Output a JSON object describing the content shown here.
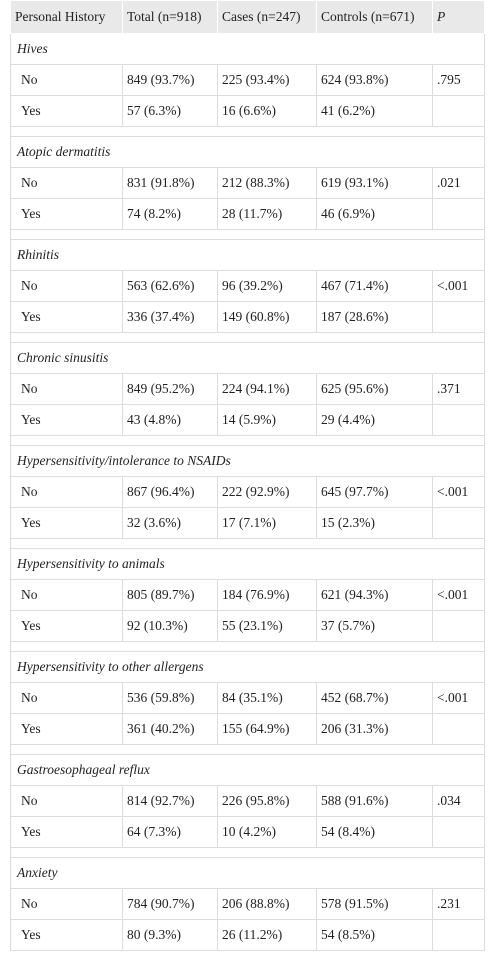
{
  "table": {
    "header": [
      "Personal History",
      "Total (n=918)",
      "Cases (n=247)",
      "Controls (n=671)",
      "P"
    ],
    "groups": [
      {
        "title": "Hives",
        "p": ".795",
        "rows": [
          [
            "No",
            "849 (93.7%)",
            "225 (93.4%)",
            "624 (93.8%)"
          ],
          [
            "Yes",
            "57 (6.3%)",
            "16 (6.6%)",
            "41 (6.2%)"
          ]
        ]
      },
      {
        "title": "Atopic dermatitis",
        "p": ".021",
        "rows": [
          [
            "No",
            "831 (91.8%)",
            "212 (88.3%)",
            "619 (93.1%)"
          ],
          [
            "Yes",
            "74 (8.2%)",
            "28 (11.7%)",
            "46 (6.9%)"
          ]
        ]
      },
      {
        "title": "Rhinitis",
        "p": "<.001",
        "rows": [
          [
            "No",
            "563 (62.6%)",
            "96 (39.2%)",
            "467 (71.4%)"
          ],
          [
            "Yes",
            "336 (37.4%)",
            "149 (60.8%)",
            "187 (28.6%)"
          ]
        ]
      },
      {
        "title": "Chronic sinusitis",
        "p": ".371",
        "rows": [
          [
            "No",
            "849 (95.2%)",
            "224 (94.1%)",
            "625 (95.6%)"
          ],
          [
            "Yes",
            "43 (4.8%)",
            "14 (5.9%)",
            "29 (4.4%)"
          ]
        ]
      },
      {
        "title": "Hypersensitivity/intolerance to NSAIDs",
        "p": "<.001",
        "rows": [
          [
            "No",
            "867 (96.4%)",
            "222 (92.9%)",
            "645 (97.7%)"
          ],
          [
            "Yes",
            "32 (3.6%)",
            "17 (7.1%)",
            "15 (2.3%)"
          ]
        ]
      },
      {
        "title": "Hypersensitivity to animals",
        "p": "<.001",
        "rows": [
          [
            "No",
            "805 (89.7%)",
            "184 (76.9%)",
            "621 (94.3%)"
          ],
          [
            "Yes",
            "92 (10.3%)",
            "55 (23.1%)",
            "37 (5.7%)"
          ]
        ]
      },
      {
        "title": "Hypersensitivity to other allergens",
        "p": "<.001",
        "rows": [
          [
            "No",
            "536 (59.8%)",
            "84 (35.1%)",
            "452 (68.7%)"
          ],
          [
            "Yes",
            "361 (40.2%)",
            "155 (64.9%)",
            "206 (31.3%)"
          ]
        ]
      },
      {
        "title": "Gastroesophageal reflux",
        "p": ".034",
        "rows": [
          [
            "No",
            "814 (92.7%)",
            "226 (95.8%)",
            "588 (91.6%)"
          ],
          [
            "Yes",
            "64 (7.3%)",
            "10 (4.2%)",
            "54 (8.4%)"
          ]
        ]
      },
      {
        "title": "Anxiety",
        "p": ".231",
        "rows": [
          [
            "No",
            "784 (90.7%)",
            "206 (88.8%)",
            "578 (91.5%)"
          ],
          [
            "Yes",
            "80 (9.3%)",
            "26 (11.2%)",
            "54 (8.5%)"
          ]
        ]
      }
    ]
  }
}
